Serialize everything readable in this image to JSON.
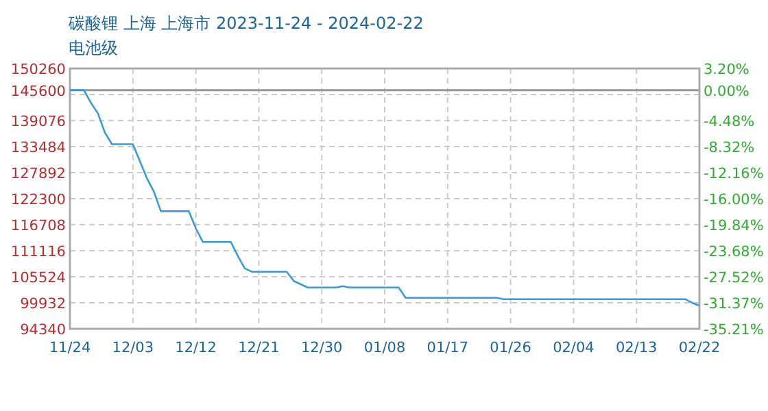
{
  "chart_data": {
    "type": "line",
    "title": "碳酸锂 上海 上海市 2023-11-24 - 2024-02-22",
    "subtitle": "电池级",
    "x": [
      "2023-11-24",
      "2023-11-26",
      "2023-11-27",
      "2023-11-28",
      "2023-11-29",
      "2023-11-30",
      "2023-12-03",
      "2023-12-05",
      "2023-12-06",
      "2023-12-07",
      "2023-12-11",
      "2023-12-12",
      "2023-12-13",
      "2023-12-17",
      "2023-12-18",
      "2023-12-19",
      "2023-12-20",
      "2023-12-25",
      "2023-12-26",
      "2023-12-28",
      "2024-01-01",
      "2024-01-02",
      "2024-01-03",
      "2024-01-10",
      "2024-01-11",
      "2024-01-24",
      "2024-01-25",
      "2024-02-20",
      "2024-02-21",
      "2024-02-22"
    ],
    "values": [
      145600,
      145600,
      142900,
      140600,
      136500,
      134000,
      134000,
      126700,
      123800,
      119600,
      119600,
      115900,
      113000,
      113000,
      110000,
      107300,
      106600,
      106600,
      104600,
      103200,
      103200,
      103500,
      103200,
      103200,
      101000,
      101000,
      100700,
      100700,
      99900,
      99300
    ],
    "color": "#3d9ad8",
    "xlim": [
      "2023-11-24",
      "2024-02-22"
    ],
    "xticks": [
      {
        "value": "2023-11-24",
        "label": "11/24"
      },
      {
        "value": "2023-12-03",
        "label": "12/03"
      },
      {
        "value": "2023-12-12",
        "label": "12/12"
      },
      {
        "value": "2023-12-21",
        "label": "12/21"
      },
      {
        "value": "2023-12-30",
        "label": "12/30"
      },
      {
        "value": "2024-01-08",
        "label": "01/08"
      },
      {
        "value": "2024-01-17",
        "label": "01/17"
      },
      {
        "value": "2024-01-26",
        "label": "01/26"
      },
      {
        "value": "2024-02-04",
        "label": "02/04"
      },
      {
        "value": "2024-02-13",
        "label": "02/13"
      },
      {
        "value": "2024-02-22",
        "label": "02/22"
      }
    ],
    "ylim": [
      94340,
      150260
    ],
    "yticks": [
      150260,
      {
        "value": 144668,
        "label": null
      },
      145600,
      139076,
      133484,
      127892,
      122300,
      116708,
      111116,
      105524,
      99932,
      94340
    ],
    "y2lim": [
      -35.21,
      3.2
    ],
    "y2ticks": [
      {
        "value": 3.2,
        "label": "3.20%"
      },
      {
        "value": 0,
        "label": "0.00%"
      },
      {
        "value": -4.48,
        "label": "-4.48%"
      },
      {
        "value": -8.32,
        "label": "-8.32%"
      },
      {
        "value": -12.16,
        "label": "-12.16%"
      },
      {
        "value": -16.0,
        "label": "-16.00%"
      },
      {
        "value": -19.84,
        "label": "-19.84%"
      },
      {
        "value": -23.68,
        "label": "-23.68%"
      },
      {
        "value": -27.52,
        "label": "-27.52%"
      },
      {
        "value": -31.37,
        "label": "-31.37%"
      },
      {
        "value": -35.21,
        "label": "-35.21%"
      }
    ],
    "grid": true,
    "ref_lines": [
      {
        "axis": "y",
        "value": 145600,
        "color": "#999999",
        "line_style": "solid"
      }
    ]
  }
}
